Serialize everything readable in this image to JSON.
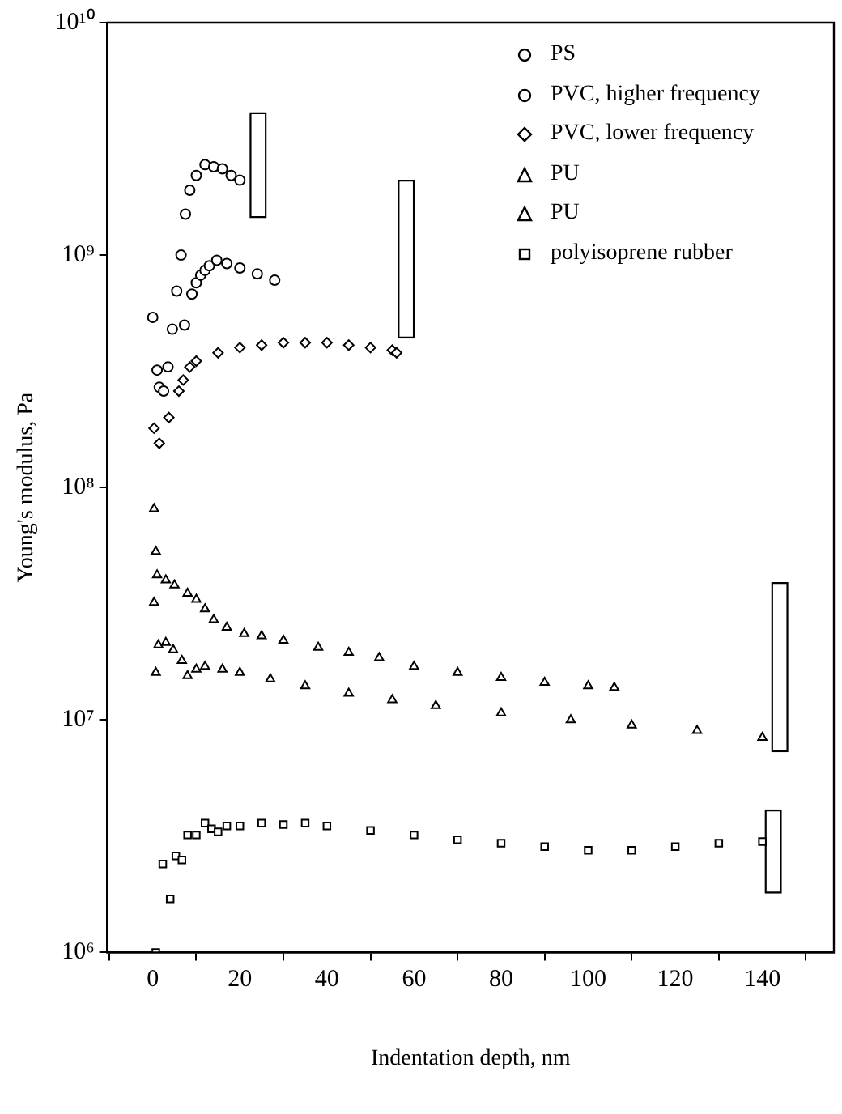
{
  "chart_data": {
    "type": "scatter",
    "xlabel": "Indentation depth, nm",
    "ylabel": "Young's modulus, Pa",
    "log": "y",
    "xlim": [
      0,
      146
    ],
    "xticks": [
      0,
      20,
      40,
      60,
      80,
      100,
      120,
      140
    ],
    "ylim": [
      1000000,
      10000000000
    ],
    "yticks": [
      {
        "value": 1000000,
        "label": "10⁶"
      },
      {
        "value": 10000000,
        "label": "10⁷"
      },
      {
        "value": 100000000,
        "label": "10⁸"
      },
      {
        "value": 1000000000,
        "label": "10⁹"
      },
      {
        "value": 10000000000,
        "label": "10¹⁰"
      }
    ],
    "grid": false,
    "legend": "top right",
    "series": [
      {
        "name": "PS",
        "color": "#000000",
        "marker": "circle",
        "x": [
          0,
          1,
          1.5,
          2.5,
          3.5,
          4.5,
          5.5,
          6.5,
          7.5,
          8.5,
          10,
          12,
          14,
          16,
          18,
          20
        ],
        "values": [
          540000000,
          320000000,
          270000000,
          260000000,
          330000000,
          480000000,
          700000000,
          1000000000,
          1500000000,
          1900000000,
          2200000000,
          2450000000,
          2400000000,
          2350000000,
          2200000000,
          2100000000
        ]
      },
      {
        "name": "PVC, higher frequency",
        "color": "#000000",
        "marker": "circle",
        "x": [
          7.3,
          9,
          10,
          11,
          12,
          13,
          14.7,
          17,
          20,
          24,
          28
        ],
        "values": [
          500000000,
          680000000,
          760000000,
          820000000,
          860000000,
          900000000,
          950000000,
          920000000,
          880000000,
          830000000,
          780000000
        ]
      },
      {
        "name": "PVC, lower frequency",
        "color": "#000000",
        "marker": "diamond",
        "x": [
          0.3,
          1.5,
          3.7,
          6,
          7,
          8.5,
          10,
          15,
          20,
          25,
          30,
          35,
          40,
          45,
          50,
          55,
          56
        ],
        "values": [
          180000000,
          155000000,
          200000000,
          260000000,
          290000000,
          330000000,
          350000000,
          380000000,
          400000000,
          410000000,
          420000000,
          420000000,
          420000000,
          410000000,
          400000000,
          390000000,
          380000000
        ]
      },
      {
        "name": "PU",
        "color": "#000000",
        "marker": "triangle",
        "x": [
          0.3,
          0.7,
          1,
          3,
          5,
          8,
          10,
          12,
          14,
          17,
          21,
          25,
          30,
          38,
          45,
          52,
          60,
          70,
          80,
          90,
          100,
          106
        ],
        "values": [
          81000000,
          53000000,
          42000000,
          40000000,
          38000000,
          35000000,
          33000000,
          30000000,
          27000000,
          25000000,
          23500000,
          23000000,
          22000000,
          20500000,
          19500000,
          18500000,
          17000000,
          16000000,
          15200000,
          14500000,
          14000000,
          13800000
        ]
      },
      {
        "name": "PU",
        "color": "#000000",
        "marker": "triangle",
        "x": [
          0.3,
          0.7,
          1.3,
          3,
          4.7,
          6.7,
          8,
          10,
          12,
          16,
          20,
          27,
          35,
          45,
          55,
          65,
          80,
          96,
          110,
          125,
          140
        ],
        "values": [
          32000000,
          16000000,
          21000000,
          21500000,
          20000000,
          18000000,
          15500000,
          16500000,
          17000000,
          16500000,
          16000000,
          15000000,
          14000000,
          13000000,
          12200000,
          11500000,
          10700000,
          10000000,
          9500000,
          9000000,
          8400000
        ]
      },
      {
        "name": "polyisoprene rubber",
        "color": "#000000",
        "marker": "square",
        "x": [
          0.7,
          2.3,
          4,
          5.3,
          6.7,
          8,
          10,
          12,
          13.5,
          15,
          17,
          20,
          25,
          30,
          35,
          40,
          50,
          60,
          70,
          80,
          90,
          100,
          110,
          120,
          130,
          140
        ],
        "values": [
          1000000,
          2400000,
          1700000,
          2600000,
          2500000,
          3200000,
          3200000,
          3600000,
          3400000,
          3300000,
          3500000,
          3500000,
          3600000,
          3550000,
          3600000,
          3500000,
          3350000,
          3200000,
          3050000,
          2950000,
          2850000,
          2750000,
          2750000,
          2850000,
          2950000,
          3000000
        ]
      },
      {
        "type": "bar",
        "color": "#ffffff",
        "x": [
          24.2,
          58.2,
          142.5,
          144
        ],
        "base": [
          1450000000,
          440000000,
          1800000,
          7300000
        ],
        "values": [
          2650000000,
          1660000000,
          2300000,
          31700000
        ]
      }
    ]
  }
}
